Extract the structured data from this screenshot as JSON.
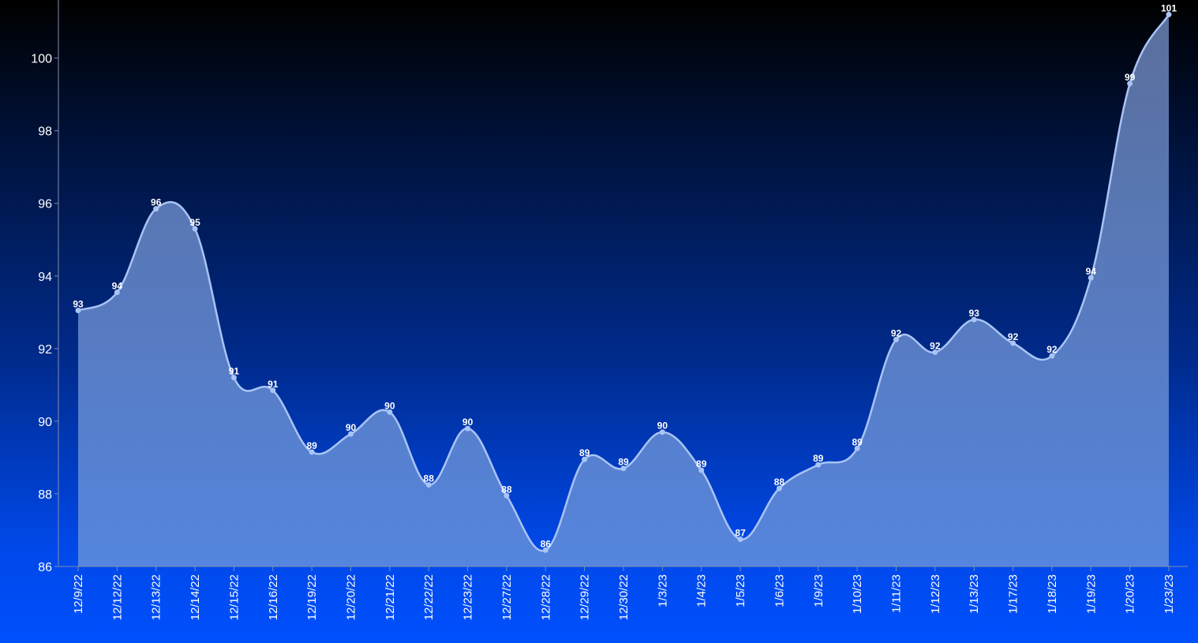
{
  "chart_data": {
    "type": "area",
    "categories": [
      "12/9/22",
      "12/12/22",
      "12/13/22",
      "12/14/22",
      "12/15/22",
      "12/16/22",
      "12/19/22",
      "12/20/22",
      "12/21/22",
      "12/22/22",
      "12/23/22",
      "12/27/22",
      "12/28/22",
      "12/29/22",
      "12/30/22",
      "1/3/23",
      "1/4/23",
      "1/5/23",
      "1/6/23",
      "1/9/23",
      "1/10/23",
      "1/11/23",
      "1/12/23",
      "1/13/23",
      "1/17/23",
      "1/18/23",
      "1/19/23",
      "1/20/23",
      "1/23/23"
    ],
    "series": [
      {
        "values": [
          93.05,
          93.55,
          95.85,
          95.3,
          91.2,
          90.85,
          89.15,
          89.65,
          90.25,
          88.25,
          89.8,
          87.95,
          86.45,
          88.95,
          88.7,
          89.7,
          88.65,
          86.75,
          88.15,
          88.8,
          89.25,
          92.25,
          91.9,
          92.8,
          92.15,
          91.8,
          93.95,
          99.3,
          101.2
        ],
        "labels": [
          "93",
          "94",
          "96",
          "95",
          "91",
          "91",
          "89",
          "90",
          "90",
          "88",
          "90",
          "88",
          "86",
          "89",
          "89",
          "90",
          "89",
          "87",
          "88",
          "89",
          "89",
          "92",
          "92",
          "93",
          "92",
          "92",
          "94",
          "99",
          "101"
        ]
      }
    ],
    "y_ticks": [
      "86",
      "88",
      "90",
      "92",
      "94",
      "96",
      "98",
      "100"
    ],
    "ylim": [
      86,
      101.6
    ],
    "grid": false,
    "colors": {
      "line": "#a9c4f5",
      "fill_top": "#5a6f9c",
      "fill_bottom": "#5585de",
      "axis": "#7f8fb0",
      "text": "#ffffff"
    }
  }
}
